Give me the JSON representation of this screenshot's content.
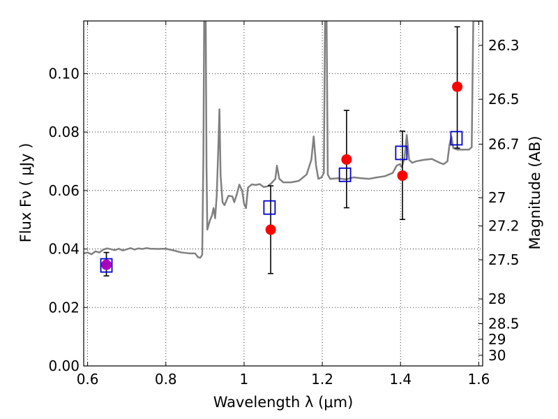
{
  "chart_data": {
    "type": "scatter",
    "xlabel": "Wavelength  λ (μm)",
    "ylabel": "Flux  Fν  ( μJy )",
    "y2label": "Magnitude (AB)",
    "xlim": [
      0.59,
      1.61
    ],
    "ylim": [
      0.0,
      0.118
    ],
    "grid": true,
    "grid_style": "dotted",
    "x_ticks": [
      {
        "value": 0.6,
        "label": "0.6"
      },
      {
        "value": 0.8,
        "label": "0.8"
      },
      {
        "value": 1.0,
        "label": "1"
      },
      {
        "value": 1.2,
        "label": "1.2"
      },
      {
        "value": 1.4,
        "label": "1.4"
      },
      {
        "value": 1.6,
        "label": "1.6"
      }
    ],
    "y_ticks": [
      {
        "value": 0.0,
        "label": "0.00"
      },
      {
        "value": 0.02,
        "label": "0.02"
      },
      {
        "value": 0.04,
        "label": "0.04"
      },
      {
        "value": 0.06,
        "label": "0.06"
      },
      {
        "value": 0.08,
        "label": "0.08"
      },
      {
        "value": 0.1,
        "label": "0.10"
      }
    ],
    "y2_ticks": [
      {
        "mag": 26.3,
        "label": "26.3"
      },
      {
        "mag": 26.5,
        "label": "26.5"
      },
      {
        "mag": 26.7,
        "label": "26.7"
      },
      {
        "mag": 27.0,
        "label": "27"
      },
      {
        "mag": 27.2,
        "label": "27.2"
      },
      {
        "mag": 27.5,
        "label": "27.5"
      },
      {
        "mag": 28.0,
        "label": "28"
      },
      {
        "mag": 28.5,
        "label": "28.5"
      },
      {
        "mag": 29.0,
        "label": "29"
      },
      {
        "mag": 30.0,
        "label": "30"
      }
    ],
    "series": [
      {
        "kind": "line",
        "color": "#808080",
        "points": [
          [
            0.59,
            0.0385
          ],
          [
            0.6,
            0.0388
          ],
          [
            0.61,
            0.0382
          ],
          [
            0.62,
            0.0392
          ],
          [
            0.63,
            0.0388
          ],
          [
            0.64,
            0.0398
          ],
          [
            0.65,
            0.0402
          ],
          [
            0.66,
            0.0399
          ],
          [
            0.67,
            0.0396
          ],
          [
            0.68,
            0.0401
          ],
          [
            0.69,
            0.0395
          ],
          [
            0.7,
            0.0399
          ],
          [
            0.71,
            0.0403
          ],
          [
            0.72,
            0.0398
          ],
          [
            0.73,
            0.0402
          ],
          [
            0.74,
            0.04
          ],
          [
            0.75,
            0.0403
          ],
          [
            0.76,
            0.0401
          ],
          [
            0.78,
            0.04
          ],
          [
            0.8,
            0.0401
          ],
          [
            0.82,
            0.0395
          ],
          [
            0.84,
            0.0388
          ],
          [
            0.86,
            0.0385
          ],
          [
            0.875,
            0.0385
          ],
          [
            0.882,
            0.0372
          ],
          [
            0.888,
            0.037
          ],
          [
            0.893,
            0.038
          ],
          [
            0.896,
            0.072
          ],
          [
            0.898,
            0.118
          ],
          [
            0.902,
            0.118
          ],
          [
            0.904,
            0.068
          ],
          [
            0.906,
            0.0466
          ],
          [
            0.912,
            0.0495
          ],
          [
            0.918,
            0.0515
          ],
          [
            0.922,
            0.054
          ],
          [
            0.926,
            0.0505
          ],
          [
            0.93,
            0.058
          ],
          [
            0.934,
            0.074
          ],
          [
            0.937,
            0.0878
          ],
          [
            0.94,
            0.065
          ],
          [
            0.945,
            0.056
          ],
          [
            0.95,
            0.055
          ],
          [
            0.96,
            0.0582
          ],
          [
            0.97,
            0.058
          ],
          [
            0.975,
            0.056
          ],
          [
            0.982,
            0.059
          ],
          [
            0.988,
            0.062
          ],
          [
            0.995,
            0.06
          ],
          [
            1.0,
            0.0555
          ],
          [
            1.005,
            0.054
          ],
          [
            1.01,
            0.061
          ],
          [
            1.02,
            0.0621
          ],
          [
            1.03,
            0.0619
          ],
          [
            1.04,
            0.0622
          ],
          [
            1.05,
            0.0612
          ],
          [
            1.06,
            0.0614
          ],
          [
            1.07,
            0.0625
          ],
          [
            1.08,
            0.064
          ],
          [
            1.084,
            0.0685
          ],
          [
            1.09,
            0.064
          ],
          [
            1.1,
            0.0628
          ],
          [
            1.12,
            0.0628
          ],
          [
            1.14,
            0.0633
          ],
          [
            1.16,
            0.0655
          ],
          [
            1.172,
            0.0705
          ],
          [
            1.178,
            0.0785
          ],
          [
            1.184,
            0.0685
          ],
          [
            1.19,
            0.064
          ],
          [
            1.198,
            0.0645
          ],
          [
            1.204,
            0.066
          ],
          [
            1.207,
            0.118
          ],
          [
            1.211,
            0.118
          ],
          [
            1.214,
            0.0655
          ],
          [
            1.22,
            0.064
          ],
          [
            1.24,
            0.0642
          ],
          [
            1.26,
            0.0638
          ],
          [
            1.28,
            0.0645
          ],
          [
            1.3,
            0.0642
          ],
          [
            1.32,
            0.064
          ],
          [
            1.34,
            0.0645
          ],
          [
            1.36,
            0.0649
          ],
          [
            1.38,
            0.066
          ],
          [
            1.39,
            0.0685
          ],
          [
            1.398,
            0.069
          ],
          [
            1.403,
            0.068
          ],
          [
            1.41,
            0.071
          ],
          [
            1.416,
            0.079
          ],
          [
            1.422,
            0.0705
          ],
          [
            1.43,
            0.0695
          ],
          [
            1.44,
            0.07
          ],
          [
            1.46,
            0.0705
          ],
          [
            1.48,
            0.0708
          ],
          [
            1.5,
            0.0695
          ],
          [
            1.51,
            0.069
          ],
          [
            1.52,
            0.07
          ],
          [
            1.525,
            0.0755
          ],
          [
            1.53,
            0.0785
          ],
          [
            1.535,
            0.0745
          ],
          [
            1.545,
            0.074
          ],
          [
            1.56,
            0.074
          ],
          [
            1.575,
            0.074
          ],
          [
            1.582,
            0.0748
          ],
          [
            1.586,
            0.118
          ],
          [
            1.6,
            0.118
          ],
          [
            1.61,
            0.118
          ]
        ]
      },
      {
        "kind": "errorbar",
        "color": "#000000",
        "points": [
          {
            "x": 0.648,
            "lo": 0.0308,
            "hi": 0.0388
          },
          {
            "x": 1.068,
            "lo": 0.0316,
            "hi": 0.0616
          },
          {
            "x": 1.262,
            "lo": 0.0541,
            "hi": 0.0874
          },
          {
            "x": 1.405,
            "lo": 0.0501,
            "hi": 0.0803
          },
          {
            "x": 1.545,
            "lo": 0.0745,
            "hi": 0.116
          }
        ]
      },
      {
        "kind": "scatter",
        "marker": "circle",
        "color": "#ff0000",
        "points": [
          [
            1.068,
            0.0466
          ],
          [
            1.262,
            0.0706
          ],
          [
            1.405,
            0.0651
          ],
          [
            1.545,
            0.0955
          ]
        ]
      },
      {
        "kind": "scatter",
        "marker": "circle",
        "color": "#aa00bb",
        "points": [
          [
            0.648,
            0.0346
          ]
        ]
      },
      {
        "kind": "scatter",
        "marker": "square-open",
        "color": "#0000cc",
        "points": [
          [
            0.648,
            0.0345
          ],
          [
            1.065,
            0.0543
          ],
          [
            1.258,
            0.0655
          ],
          [
            1.402,
            0.073
          ],
          [
            1.543,
            0.078
          ]
        ]
      }
    ]
  }
}
